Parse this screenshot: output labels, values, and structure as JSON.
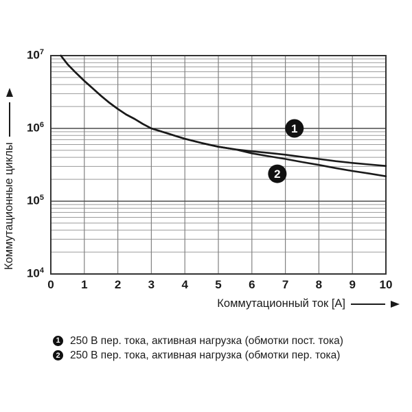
{
  "figure": {
    "background": "#ffffff"
  },
  "chart_data": {
    "type": "line",
    "title": "",
    "xlabel": "Коммутационный ток [A]",
    "ylabel": "Коммутационные циклы",
    "x_scale": "linear",
    "y_scale": "log",
    "xlim": [
      0,
      10
    ],
    "ylim": [
      10000,
      10000000
    ],
    "x_ticks": [
      0,
      1,
      2,
      3,
      4,
      5,
      6,
      7,
      8,
      9,
      10
    ],
    "y_ticks": [
      {
        "base": "10",
        "exp": "7",
        "value": 10000000
      },
      {
        "base": "10",
        "exp": "6",
        "value": 1000000
      },
      {
        "base": "10",
        "exp": "5",
        "value": 100000
      },
      {
        "base": "10",
        "exp": "4",
        "value": 10000
      }
    ],
    "grid": {
      "vertical_at_integers": true,
      "log_minor_horizontal": true
    },
    "legend_position": "below",
    "series": [
      {
        "name": "1",
        "label": "250 В пер. тока, активная нагрузка (обмотки пост. тока)",
        "marker": {
          "x": 7.27,
          "y": 1000000
        },
        "points": [
          [
            0.3,
            10000000
          ],
          [
            0.5,
            7600000
          ],
          [
            0.75,
            5800000
          ],
          [
            1,
            4500000
          ],
          [
            1.25,
            3550000
          ],
          [
            1.5,
            2800000
          ],
          [
            1.75,
            2250000
          ],
          [
            2,
            1850000
          ],
          [
            2.25,
            1550000
          ],
          [
            2.5,
            1350000
          ],
          [
            2.75,
            1150000
          ],
          [
            3,
            1000000
          ],
          [
            3.25,
            920000
          ],
          [
            3.5,
            850000
          ],
          [
            3.75,
            780000
          ],
          [
            4,
            720000
          ],
          [
            4.5,
            630000
          ],
          [
            5,
            560000
          ],
          [
            5.5,
            515000
          ],
          [
            6,
            485000
          ],
          [
            6.5,
            460000
          ],
          [
            7,
            435000
          ],
          [
            7.5,
            405000
          ],
          [
            8,
            380000
          ],
          [
            8.5,
            355000
          ],
          [
            9,
            335000
          ],
          [
            9.5,
            320000
          ],
          [
            10,
            305000
          ]
        ]
      },
      {
        "name": "2",
        "label": "250 В пер. тока, активная нагрузка (обмотки пер. тока)",
        "marker": {
          "x": 6.76,
          "y": 238000
        },
        "points": [
          [
            0.3,
            10000000
          ],
          [
            0.5,
            7600000
          ],
          [
            0.75,
            5800000
          ],
          [
            1,
            4500000
          ],
          [
            1.25,
            3550000
          ],
          [
            1.5,
            2800000
          ],
          [
            1.75,
            2250000
          ],
          [
            2,
            1850000
          ],
          [
            2.25,
            1550000
          ],
          [
            2.5,
            1350000
          ],
          [
            2.75,
            1150000
          ],
          [
            3,
            1000000
          ],
          [
            3.25,
            920000
          ],
          [
            3.5,
            850000
          ],
          [
            3.75,
            780000
          ],
          [
            4,
            720000
          ],
          [
            4.5,
            630000
          ],
          [
            5,
            560000
          ],
          [
            5.5,
            515000
          ],
          [
            6,
            455000
          ],
          [
            6.5,
            415000
          ],
          [
            7,
            380000
          ],
          [
            7.5,
            345000
          ],
          [
            8,
            315000
          ],
          [
            8.5,
            285000
          ],
          [
            9,
            260000
          ],
          [
            9.5,
            240000
          ],
          [
            10,
            220000
          ]
        ]
      }
    ],
    "colors": {
      "curve": "#1a1a1a",
      "grid_minor": "#9a9a9a",
      "grid_vertical": "#808080",
      "grid_major": "#4a4a4a",
      "frame": "#333333",
      "marker_fill": "#111111",
      "marker_text": "#ffffff"
    }
  },
  "legend": {
    "items": [
      {
        "badge": "1",
        "text": "250 В пер. тока, активная нагрузка (обмотки пост. тока)"
      },
      {
        "badge": "2",
        "text": "250 В пер. тока, активная нагрузка (обмотки пер. тока)"
      }
    ]
  }
}
